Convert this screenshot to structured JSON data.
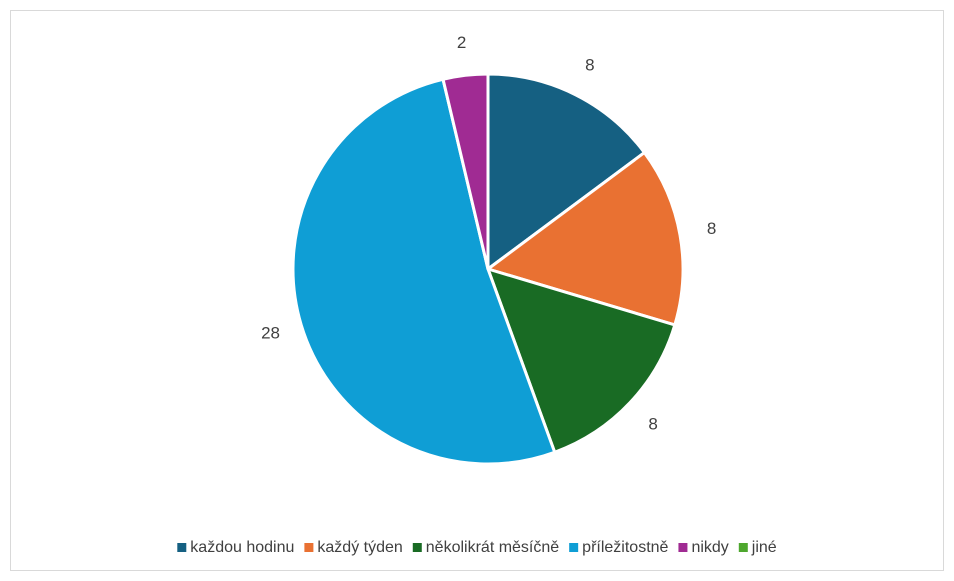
{
  "chart_data": {
    "type": "pie",
    "categories": [
      "každou hodinu",
      "každý týden",
      "několikrát měsíčně",
      "příležitostně",
      "nikdy",
      "jiné"
    ],
    "values": [
      8,
      8,
      8,
      28,
      2,
      0
    ],
    "colors": [
      "#156082",
      "#e97132",
      "#196b24",
      "#0f9ed5",
      "#a02b93",
      "#4ea72e"
    ],
    "legend": "bottom"
  }
}
